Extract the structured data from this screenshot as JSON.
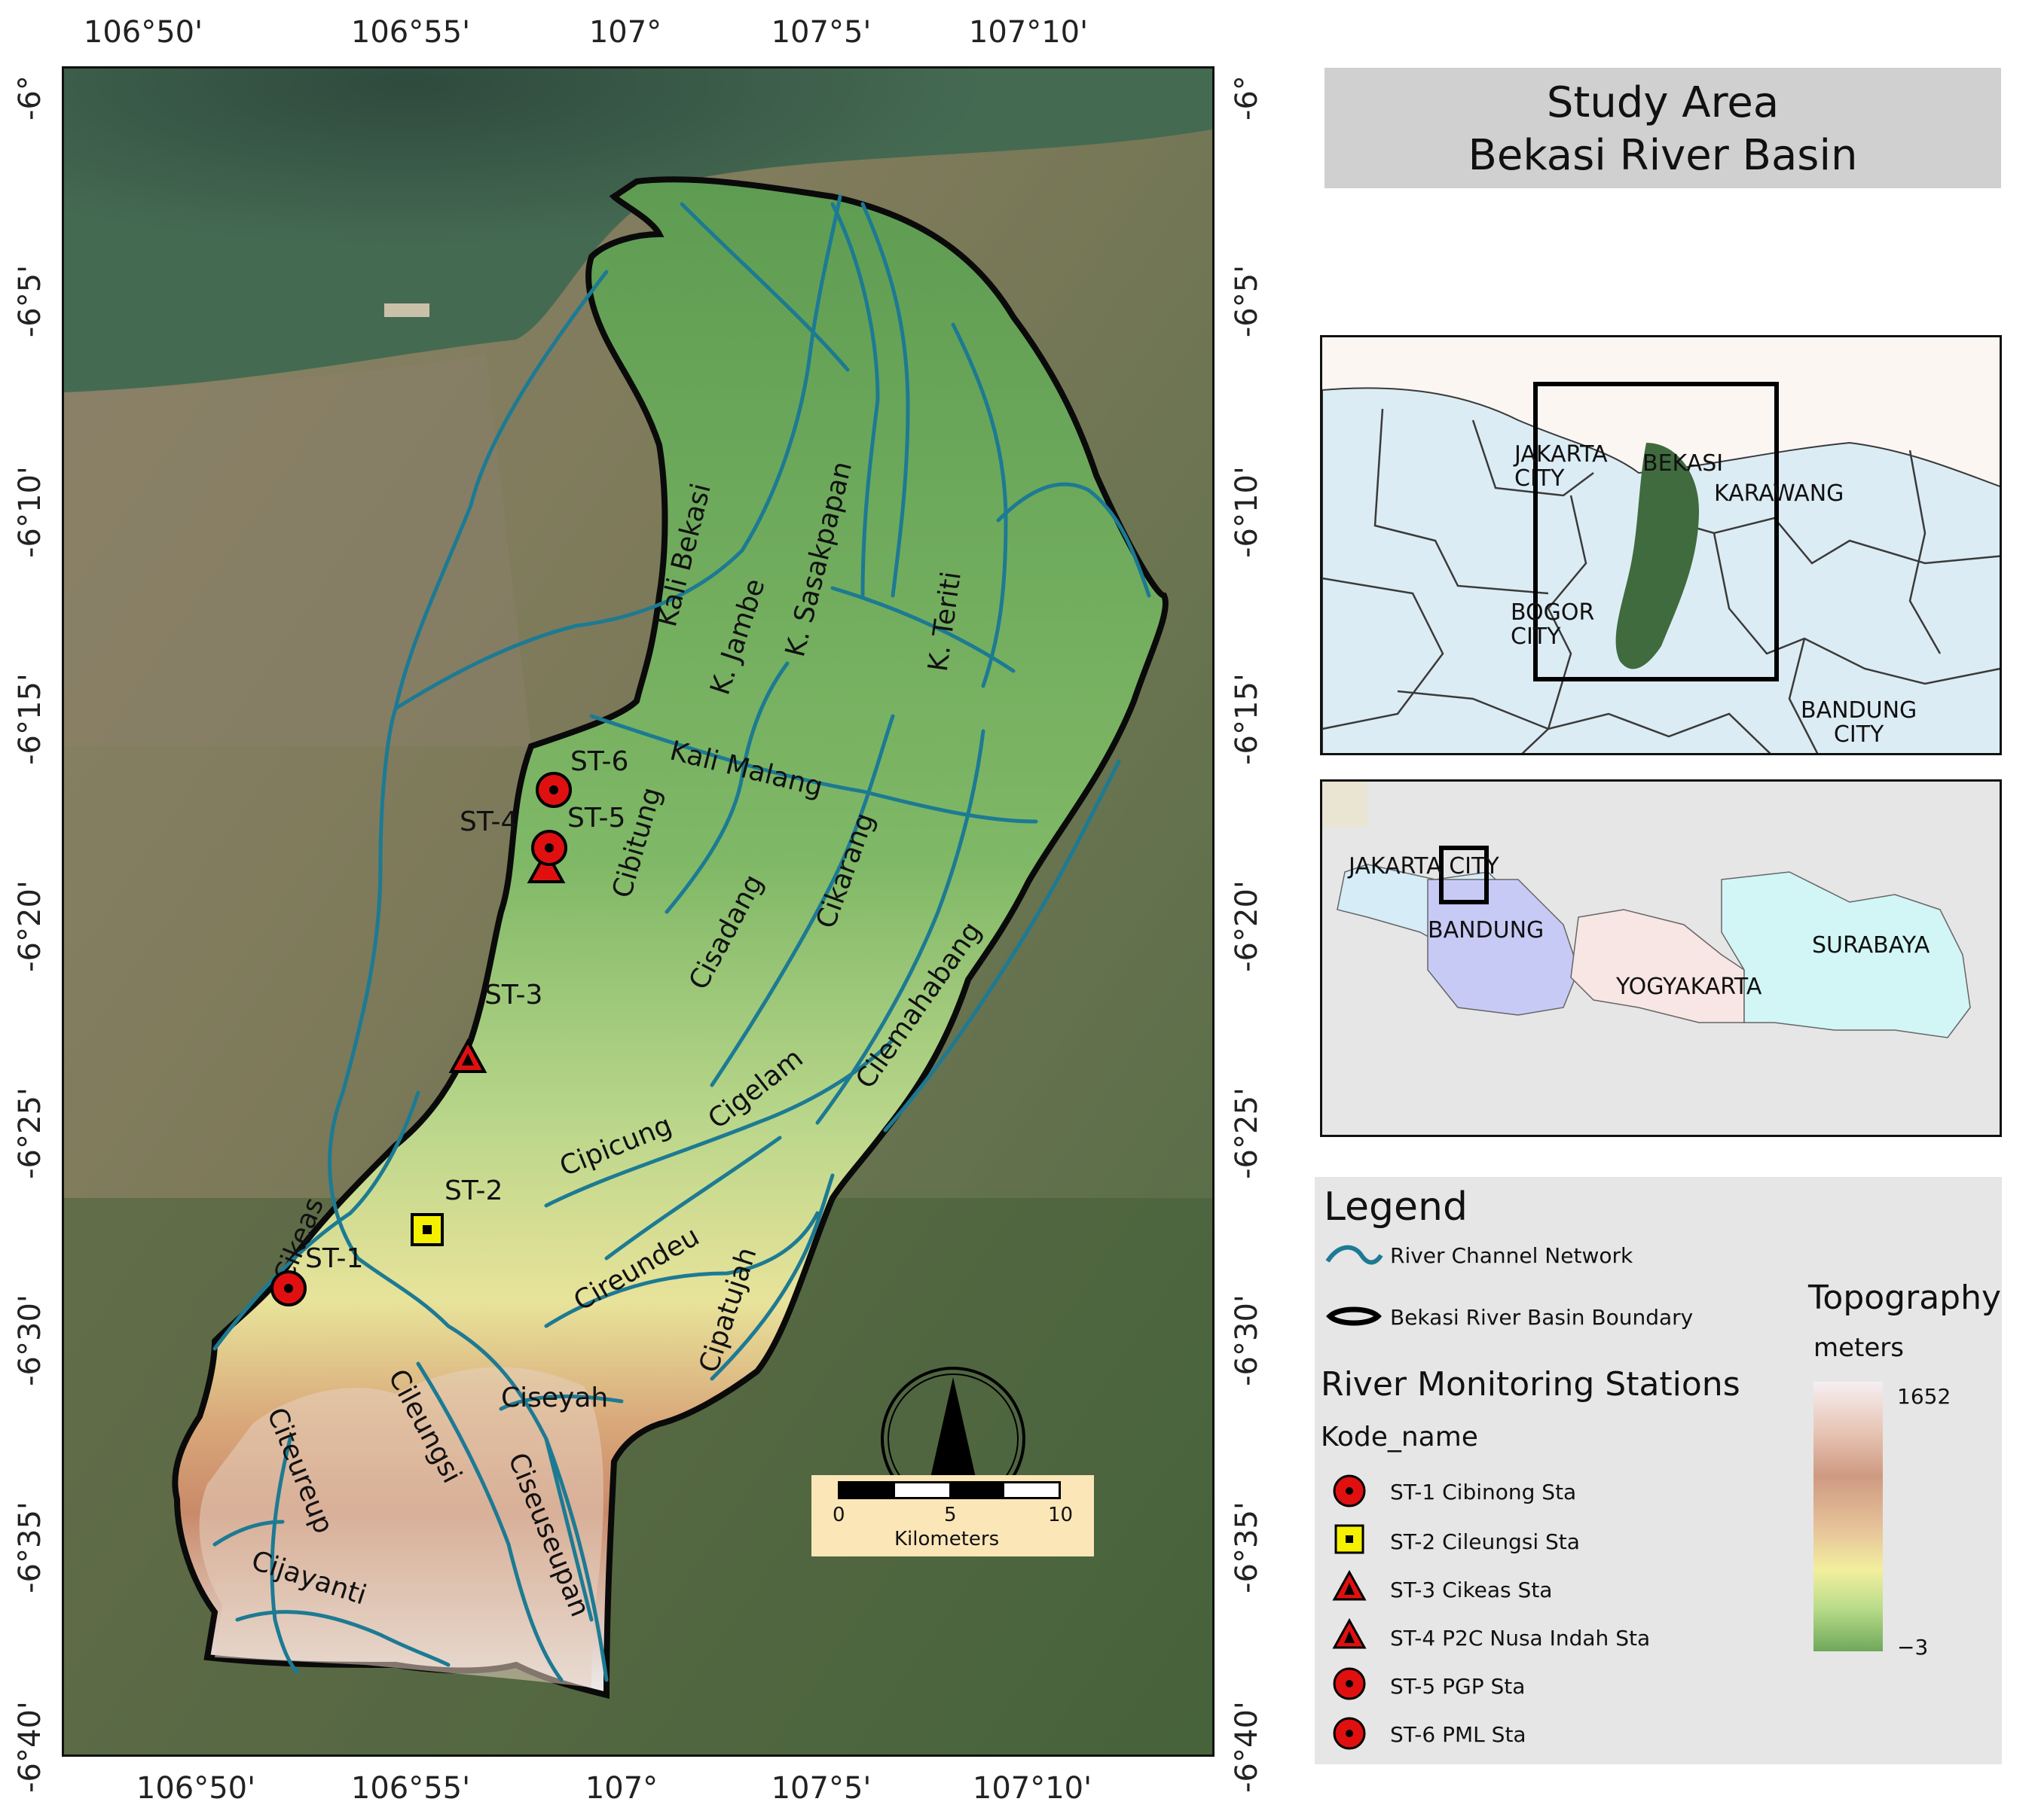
{
  "title": {
    "line1": "Study Area",
    "line2": "Bekasi River Basin"
  },
  "graticule": {
    "lon_ticks": [
      "106°50'",
      "106°55'",
      "107°",
      "107°5'",
      "107°10'"
    ],
    "lat_ticks": [
      "-6°",
      "-6°5'",
      "-6°10'",
      "-6°15'",
      "-6°20'",
      "-6°25'",
      "-6°30'",
      "-6°35'",
      "-6°40'"
    ]
  },
  "rivers": {
    "kali_bekasi": "Kali Bekasi",
    "k_jambe": "K. Jambe",
    "k_sasakpapan": "K. Sasakpapan",
    "k_teriti": "K. Teriti",
    "kali_malang": "Kali Malang",
    "cibitung": "Cibitung",
    "cisadang": "Cisadang",
    "cikarang": "Cikarang",
    "cilemahabang": "Cilemahabang",
    "cigelam": "Cigelam",
    "cipicung": "Cipicung",
    "cireundeu": "Cireundeu",
    "cipatujah": "Cipatujah",
    "cikeas": "Cikeas",
    "cileungsi": "Cileungsi",
    "citeureup": "Citeureup",
    "ciseyah": "Ciseyah",
    "ciseuseupan": "Ciseuseupan",
    "cijayanti": "Cijayanti"
  },
  "stations": {
    "st1": "ST-1",
    "st2": "ST-2",
    "st3": "ST-3",
    "st4": "ST-4",
    "st5": "ST-5",
    "st6": "ST-6"
  },
  "scale_bar": {
    "ticks": [
      "0",
      "5",
      "10"
    ],
    "unit": "Kilometers"
  },
  "inset_regional": {
    "labels": {
      "jakarta": "JAKARTA\nCITY",
      "bekasi": "BEKASI",
      "karawang": "KARAWANG",
      "bogor": "BOGOR\nCITY",
      "bandung": "BANDUNG\nCITY"
    }
  },
  "inset_java": {
    "labels": {
      "jakarta": "JAKARTA CITY",
      "bandung": "BANDUNG",
      "yogyakarta": "YOGYAKARTA",
      "surabaya": "SURABAYA"
    }
  },
  "legend": {
    "title": "Legend",
    "river_network": "River Channel Network",
    "basin_boundary": "Bekasi River Basin Boundary",
    "stations_title": "River Monitoring Stations",
    "field_name": "Kode_name",
    "items": [
      "ST-1 Cibinong Sta",
      "ST-2 Cileungsi Sta",
      "ST-3 Cikeas Sta",
      "ST-4 P2C Nusa Indah Sta",
      "ST-5 PGP Sta",
      "ST-6 PML Sta"
    ],
    "topo_title": "Topography",
    "topo_unit": "meters",
    "topo_max": "1652",
    "topo_min": "−3"
  },
  "colors": {
    "river": "#1d7a93",
    "boundary": "#0a0a0a",
    "station_red": "#e01010",
    "station_yellow": "#f5f000",
    "lowland_green": "#6fa85a",
    "highland_brown": "#c98a6a",
    "scale_bg": "#fbe6b8"
  }
}
